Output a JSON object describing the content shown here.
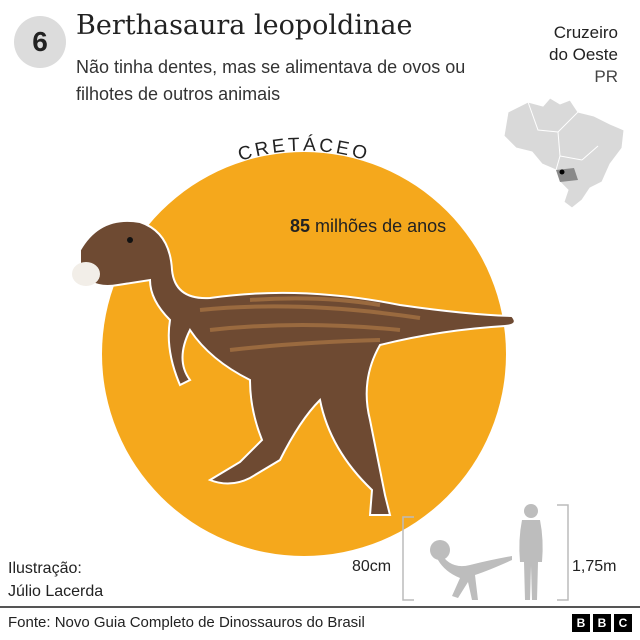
{
  "header": {
    "number": "6",
    "title": "Berthasaura leopoldinae",
    "subtitle": "Não tinha dentes, mas se alimentava de ovos ou filhotes de outros animais"
  },
  "location": {
    "city_line1": "Cruzeiro",
    "city_line2": "do Oeste",
    "state": "PR",
    "map_icon": "brazil-map-icon"
  },
  "period": {
    "label": "CRETÁCEO",
    "age_number": "85",
    "age_text": "milhões de anos",
    "color": "#f5a81c"
  },
  "scale": {
    "dino_height": "80cm",
    "human_height": "1,75m"
  },
  "credit": {
    "line1": "Ilustração:",
    "line2": "Júlio Lacerda"
  },
  "footer": {
    "source": "Fonte: Novo Guia Completo de Dinossauros do Brasil",
    "logo": [
      "B",
      "B",
      "C"
    ]
  }
}
